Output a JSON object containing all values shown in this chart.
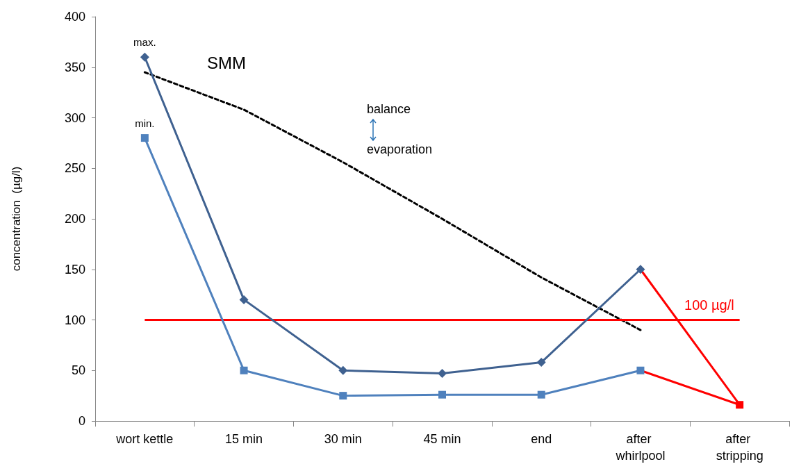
{
  "chart_data": {
    "type": "line",
    "ylabel": "concentration  (µg/l)",
    "categories": [
      "wort kettle",
      "15 min",
      "30 min",
      "45 min",
      "end",
      "after whirlpool",
      "after stripping"
    ],
    "series": [
      {
        "color": "#ff0000",
        "values": [
          null,
          null,
          null,
          null,
          null,
          150,
          16
        ],
        "marker": "square"
      },
      {
        "color": "#ff0000",
        "values": [
          null,
          null,
          null,
          null,
          null,
          50,
          16
        ],
        "marker": "none"
      },
      {
        "type": "line",
        "color": "#000000",
        "values": [
          345,
          308,
          256,
          200,
          142,
          90,
          null
        ],
        "marker": "none",
        "line_style": "dashed"
      },
      {
        "name": "max.",
        "color": "#3f6190",
        "values": [
          360,
          120,
          50,
          47,
          58,
          150,
          null
        ],
        "marker": "diamond"
      },
      {
        "name": "min.",
        "color": "#4f81bd",
        "values": [
          280,
          50,
          25,
          26,
          26,
          50,
          null
        ],
        "marker": "square"
      }
    ],
    "ylim": [
      0,
      400
    ],
    "yticks": [
      0,
      50,
      100,
      150,
      200,
      250,
      300,
      350,
      400
    ],
    "ref_lines": [
      {
        "axis": "y",
        "value": 100,
        "label": "100 µg/l",
        "color": "#ff0000"
      }
    ],
    "annotations": [
      "SMM",
      "balance",
      "evaporation"
    ],
    "grid": false,
    "legend": false,
    "line_style": "solid"
  }
}
